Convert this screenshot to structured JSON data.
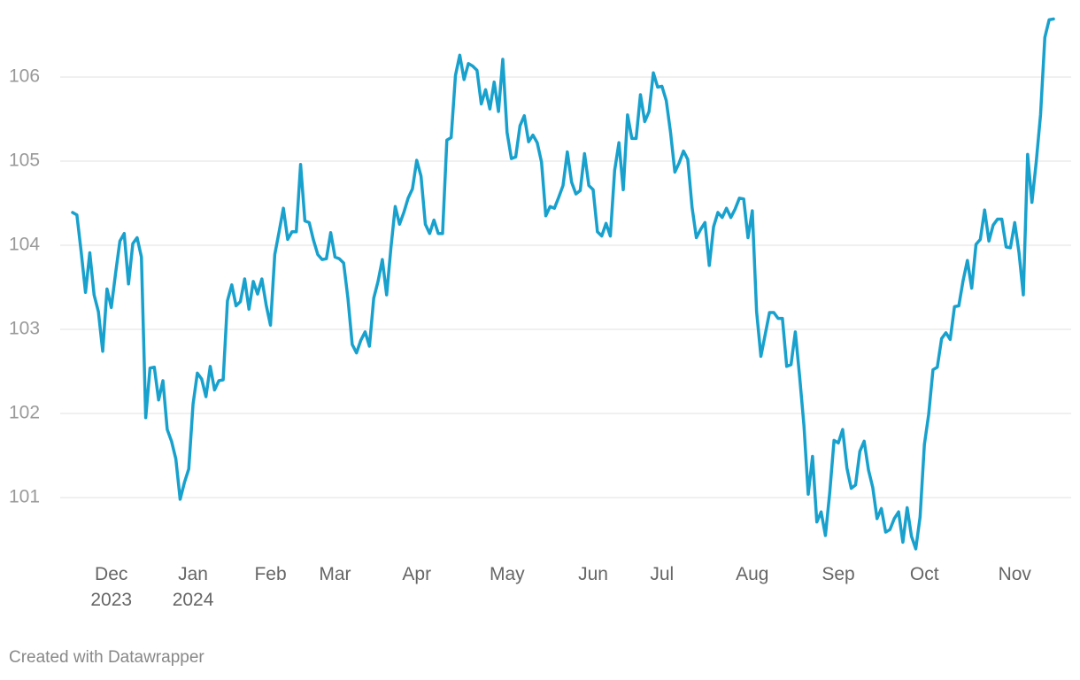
{
  "chart_data": {
    "type": "line",
    "categories": [
      null,
      null,
      null,
      null,
      null,
      null,
      null,
      null,
      null,
      "Dec\n2023",
      null,
      null,
      null,
      null,
      null,
      null,
      null,
      null,
      null,
      null,
      null,
      null,
      null,
      null,
      null,
      null,
      null,
      null,
      "Jan\n2024",
      null,
      null,
      null,
      null,
      null,
      null,
      null,
      null,
      null,
      null,
      null,
      null,
      null,
      null,
      null,
      null,
      null,
      "Feb",
      null,
      null,
      null,
      null,
      null,
      null,
      null,
      null,
      null,
      null,
      null,
      null,
      null,
      null,
      "Mar",
      null,
      null,
      null,
      null,
      null,
      null,
      null,
      null,
      null,
      null,
      null,
      null,
      null,
      null,
      null,
      null,
      null,
      null,
      "Apr",
      null,
      null,
      null,
      null,
      null,
      null,
      null,
      null,
      null,
      null,
      null,
      null,
      null,
      null,
      null,
      null,
      null,
      null,
      null,
      null,
      "May",
      null,
      null,
      null,
      null,
      null,
      null,
      null,
      null,
      null,
      null,
      null,
      null,
      null,
      null,
      null,
      null,
      null,
      null,
      null,
      "Jun",
      null,
      null,
      null,
      null,
      null,
      null,
      null,
      null,
      null,
      null,
      null,
      null,
      null,
      null,
      null,
      "Jul",
      null,
      null,
      null,
      null,
      null,
      null,
      null,
      null,
      null,
      null,
      null,
      null,
      null,
      null,
      null,
      null,
      null,
      null,
      null,
      null,
      "Aug",
      null,
      null,
      null,
      null,
      null,
      null,
      null,
      null,
      null,
      null,
      null,
      null,
      null,
      null,
      null,
      null,
      null,
      null,
      null,
      "Sep",
      null,
      null,
      null,
      null,
      null,
      null,
      null,
      null,
      null,
      null,
      null,
      null,
      null,
      null,
      null,
      null,
      null,
      null,
      null,
      "Oct",
      null,
      null,
      null,
      null,
      null,
      null,
      null,
      null,
      null,
      null,
      null,
      null,
      null,
      null,
      null,
      null,
      null,
      null,
      null,
      null,
      "Nov",
      null,
      null,
      null,
      null,
      null,
      null,
      null,
      null,
      null
    ],
    "values": [
      104.39,
      104.36,
      103.92,
      103.44,
      103.91,
      103.41,
      103.21,
      102.74,
      103.48,
      103.26,
      103.67,
      104.05,
      104.14,
      103.54,
      104.02,
      104.09,
      103.86,
      101.95,
      102.54,
      102.55,
      102.16,
      102.39,
      101.81,
      101.67,
      101.46,
      100.98,
      101.18,
      101.34,
      102.11,
      102.48,
      102.41,
      102.2,
      102.56,
      102.28,
      102.39,
      102.4,
      103.34,
      103.53,
      103.28,
      103.33,
      103.6,
      103.24,
      103.57,
      103.42,
      103.6,
      103.29,
      103.05,
      103.89,
      104.16,
      104.44,
      104.07,
      104.16,
      104.16,
      104.96,
      104.29,
      104.27,
      104.06,
      103.89,
      103.83,
      103.84,
      104.15,
      103.86,
      103.84,
      103.79,
      103.37,
      102.82,
      102.72,
      102.87,
      102.97,
      102.8,
      103.37,
      103.57,
      103.83,
      103.41,
      103.97,
      104.46,
      104.25,
      104.39,
      104.56,
      104.67,
      105.01,
      104.82,
      104.25,
      104.14,
      104.3,
      104.14,
      104.14,
      105.25,
      105.28,
      106.02,
      106.26,
      105.97,
      106.16,
      106.13,
      106.08,
      105.68,
      105.85,
      105.62,
      105.94,
      105.59,
      106.21,
      105.34,
      105.03,
      105.05,
      105.42,
      105.54,
      105.23,
      105.31,
      105.22,
      104.99,
      104.35,
      104.46,
      104.44,
      104.57,
      104.71,
      105.11,
      104.75,
      104.61,
      104.65,
      105.09,
      104.71,
      104.66,
      104.16,
      104.11,
      104.26,
      104.11,
      104.89,
      105.22,
      104.66,
      105.55,
      105.27,
      105.27,
      105.79,
      105.47,
      105.59,
      106.05,
      105.88,
      105.89,
      105.72,
      105.34,
      104.87,
      104.98,
      105.12,
      105.02,
      104.45,
      104.09,
      104.19,
      104.27,
      103.76,
      104.22,
      104.39,
      104.33,
      104.44,
      104.33,
      104.43,
      104.56,
      104.55,
      104.09,
      104.41,
      103.21,
      102.68,
      102.94,
      103.2,
      103.2,
      103.13,
      103.13,
      102.56,
      102.58,
      102.97,
      102.44,
      101.86,
      101.04,
      101.49,
      100.71,
      100.83,
      100.55,
      101.06,
      101.68,
      101.65,
      101.81,
      101.35,
      101.11,
      101.15,
      101.55,
      101.67,
      101.33,
      101.12,
      100.75,
      100.87,
      100.59,
      100.62,
      100.75,
      100.83,
      100.47,
      100.88,
      100.54,
      100.39,
      100.77,
      101.63,
      101.99,
      102.52,
      102.55,
      102.89,
      102.96,
      102.88,
      103.27,
      103.28,
      103.58,
      103.82,
      103.49,
      104.01,
      104.07,
      104.42,
      104.05,
      104.24,
      104.31,
      104.31,
      103.98,
      103.97,
      104.27,
      103.91,
      103.41,
      105.08,
      104.51,
      104.99,
      105.55,
      106.47,
      106.68,
      106.69
    ],
    "color": "#18a1cd",
    "ylim": [
      100.3,
      106.7
    ],
    "yticks": [
      101,
      102,
      103,
      104,
      105,
      106
    ],
    "grid": true,
    "footer": "Created with Datawrapper"
  }
}
